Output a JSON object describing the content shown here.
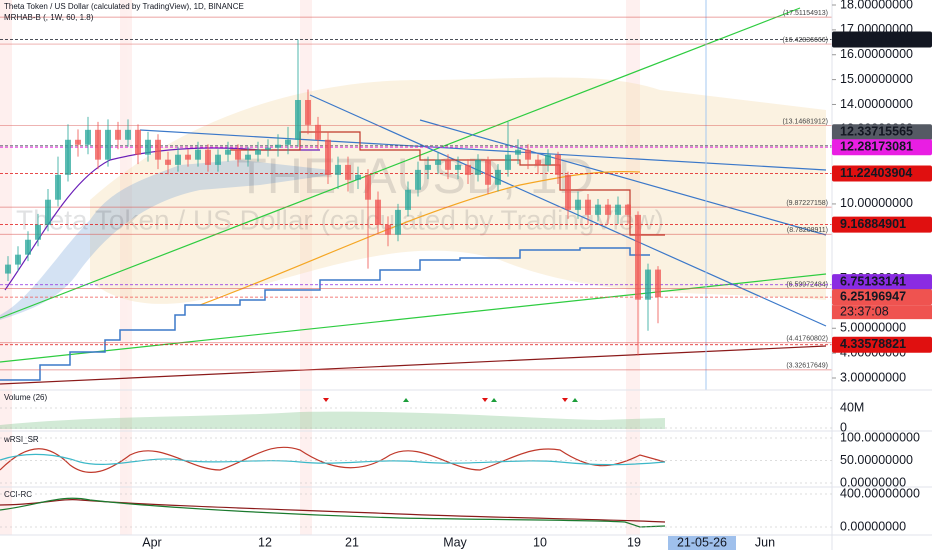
{
  "header": {
    "title": "Theta Token / US Dollar (calculated by TradingView), 1D, BINANCE",
    "indicator": "MRHAB-B (, 1W, 60, 1.8)"
  },
  "watermark": {
    "symbol": "THETAUSD, 1D",
    "name": "Theta Token / US Dollar (calculated by TradingView)"
  },
  "price_axis": {
    "ticks": [
      {
        "value": 18,
        "label": "18.00000000"
      },
      {
        "value": 17,
        "label": "17.00000000"
      },
      {
        "value": 16,
        "label": "16.00000000"
      },
      {
        "value": 15,
        "label": "15.00000000"
      },
      {
        "value": 14,
        "label": "14.00000000"
      },
      {
        "value": 13,
        "label": "13.00000000"
      },
      {
        "value": 10,
        "label": "10.00000000"
      },
      {
        "value": 7,
        "label": "7.00000000"
      },
      {
        "value": 5,
        "label": "5.00000000"
      },
      {
        "value": 4,
        "label": "4.00000000"
      },
      {
        "value": 3,
        "label": "3.00000000"
      }
    ]
  },
  "price_labels": [
    {
      "value": 16.61170219,
      "color": "#131722"
    },
    {
      "value": 12.33715565,
      "color": "#555a64"
    },
    {
      "value": 12.28173081,
      "color": "#e91ee3"
    },
    {
      "value": 11.22403904,
      "color": "#e01010"
    },
    {
      "value": 9.16884901,
      "color": "#e01010"
    },
    {
      "value": 6.75133141,
      "color": "#8a2be2"
    },
    {
      "value": 6.25196947,
      "color": "#ef5350"
    },
    {
      "value": 4.33578821,
      "color": "#e01010"
    }
  ],
  "countdown": "23:37:08",
  "levels": [
    {
      "value": 17.51154913,
      "label": "(17.51154913)"
    },
    {
      "value": 16.42836666,
      "label": "(16.42836666)"
    },
    {
      "value": 13.14681912,
      "label": "(13.14681912)"
    },
    {
      "value": 9.87227158,
      "label": "(9.87227158)"
    },
    {
      "value": 8.78208911,
      "label": "(8.78208911)"
    },
    {
      "value": 6.59972484,
      "label": "(6.59972484)"
    },
    {
      "value": 4.41760802,
      "label": "(4.41760802)"
    },
    {
      "value": 3.32617649,
      "label": "(3.32617649)"
    }
  ],
  "candles": {
    "open": [
      7.2,
      7.56,
      7.96,
      8.56,
      9.16,
      10.17,
      11.17,
      12.58,
      12.38,
      12.98,
      11.78,
      12.98,
      12.58,
      12.98,
      11.98,
      12.58,
      11.78,
      11.57,
      11.98,
      11.78,
      12.18,
      11.57,
      11.98,
      12.18,
      11.78,
      11.98,
      12.18,
      12.26,
      12.38,
      12.58,
      14.18,
      13.18,
      12.58,
      11.17,
      11.57,
      10.97,
      11.17,
      10.17,
      9.16,
      8.76,
      9.76,
      10.57,
      11.37,
      11.57,
      11.78,
      11.37,
      11.57,
      11.17,
      11.78,
      10.77,
      11.37,
      11.98,
      12.18,
      11.78,
      11.57,
      11.98,
      11.17,
      9.76,
      10.17,
      9.56,
      9.97,
      9.56,
      9.97,
      9.56,
      6.15,
      7.36
    ],
    "high": [
      7.9,
      8.3,
      8.9,
      9.6,
      10.6,
      11.9,
      13.2,
      13.0,
      13.5,
      13.3,
      13.4,
      13.3,
      13.4,
      13.2,
      12.9,
      12.8,
      12.1,
      12.3,
      12.2,
      12.5,
      12.4,
      12.2,
      12.5,
      12.4,
      12.3,
      12.5,
      12.6,
      12.8,
      13.1,
      16.61,
      14.6,
      13.5,
      12.9,
      11.9,
      11.9,
      11.5,
      11.4,
      10.5,
      9.5,
      10.0,
      10.9,
      11.7,
      11.9,
      12.1,
      12.0,
      11.9,
      11.8,
      12.0,
      11.9,
      11.6,
      13.3,
      12.6,
      12.4,
      12.0,
      12.2,
      12.1,
      11.3,
      10.5,
      10.4,
      10.2,
      10.2,
      10.3,
      10.0,
      9.7,
      7.6,
      7.5
    ],
    "low": [
      6.9,
      7.3,
      7.7,
      8.3,
      8.9,
      9.9,
      10.9,
      11.9,
      12.0,
      11.4,
      11.5,
      12.2,
      12.3,
      11.6,
      11.7,
      11.4,
      11.2,
      11.3,
      11.5,
      11.5,
      11.3,
      11.3,
      11.7,
      11.5,
      11.5,
      11.7,
      11.9,
      11.9,
      12.0,
      12.3,
      12.8,
      12.2,
      10.8,
      10.6,
      10.5,
      10.6,
      7.4,
      8.8,
      8.3,
      8.5,
      9.5,
      10.3,
      11.0,
      11.2,
      11.0,
      11.0,
      10.8,
      10.9,
      10.4,
      10.5,
      11.1,
      11.6,
      11.4,
      11.2,
      11.3,
      10.8,
      9.4,
      9.4,
      9.2,
      9.3,
      9.2,
      9.2,
      9.2,
      3.9,
      4.9,
      5.2
    ],
    "close": [
      7.56,
      7.96,
      8.56,
      9.16,
      10.17,
      11.17,
      12.58,
      12.38,
      12.98,
      11.78,
      12.98,
      12.58,
      12.98,
      11.98,
      12.58,
      11.78,
      11.57,
      11.98,
      11.78,
      12.18,
      11.57,
      11.98,
      12.18,
      11.78,
      11.98,
      12.18,
      12.26,
      12.38,
      12.58,
      14.18,
      13.18,
      12.58,
      11.17,
      11.57,
      10.97,
      11.17,
      10.17,
      9.16,
      8.76,
      9.76,
      10.57,
      11.37,
      11.57,
      11.78,
      11.37,
      11.57,
      11.17,
      11.78,
      10.77,
      11.37,
      11.98,
      12.18,
      11.78,
      11.57,
      11.98,
      11.17,
      9.76,
      10.17,
      9.56,
      9.97,
      9.56,
      9.97,
      9.56,
      6.15,
      7.36,
      6.25
    ]
  },
  "volume": {
    "title": "Volume (26)",
    "ticks": [
      {
        "value": 40000000,
        "label": "40M"
      },
      0
    ]
  },
  "wrsi": {
    "title": "wRSI_SR",
    "ticks": [
      {
        "value": 100,
        "label": "100.00000000"
      },
      {
        "value": 50,
        "label": "50.00000000"
      },
      {
        "value": 0,
        "label": "0.00000000"
      }
    ]
  },
  "cci": {
    "title": "CCI-RC",
    "ticks": [
      {
        "value": 400,
        "label": "400.00000000"
      },
      {
        "value": 0,
        "label": "0.00000000"
      }
    ]
  },
  "time_axis": {
    "labels": [
      "Apr",
      "12",
      "21",
      "May",
      "10",
      "19",
      "Jun"
    ],
    "cursor": "21-05-26"
  }
}
